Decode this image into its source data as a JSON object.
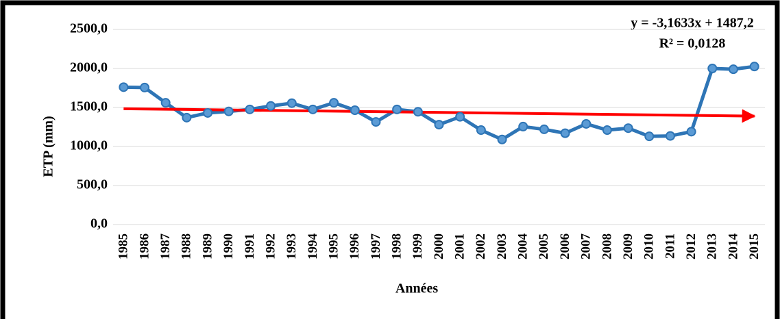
{
  "chart_data": {
    "type": "line",
    "x_label": "Années",
    "y_label": "ETP (mm)",
    "annotations": [
      "y = -3,1633x + 1487,2",
      "R² = 0,0128"
    ],
    "categories": [
      "1985",
      "1986",
      "1987",
      "1988",
      "1989",
      "1990",
      "1991",
      "1992",
      "1993",
      "1994",
      "1995",
      "1996",
      "1997",
      "1998",
      "1999",
      "2000",
      "2001",
      "2002",
      "2003",
      "2004",
      "2005",
      "2006",
      "2007",
      "2008",
      "2009",
      "2010",
      "2011",
      "2012",
      "2013",
      "2014",
      "2015"
    ],
    "values": [
      1760,
      1755,
      1560,
      1370,
      1430,
      1450,
      1475,
      1520,
      1555,
      1475,
      1560,
      1465,
      1315,
      1475,
      1445,
      1280,
      1380,
      1210,
      1090,
      1255,
      1220,
      1170,
      1290,
      1210,
      1235,
      1130,
      1135,
      1190,
      2000,
      1990,
      2025
    ],
    "color": "#2e75b6",
    "marker_color": "#5b9bd5",
    "trendline": {
      "slope": -3.1633,
      "intercept": 1487.2,
      "color": "#ff0000"
    },
    "ylim": [
      0,
      2500
    ],
    "yticks": [
      {
        "value": 0,
        "label": "0,0"
      },
      {
        "value": 500,
        "label": "500,0"
      },
      {
        "value": 1000,
        "label": "1000,0"
      },
      {
        "value": 1500,
        "label": "1500,0"
      },
      {
        "value": 2000,
        "label": "2000,0"
      },
      {
        "value": 2500,
        "label": "2500,0"
      }
    ],
    "grid": true
  }
}
